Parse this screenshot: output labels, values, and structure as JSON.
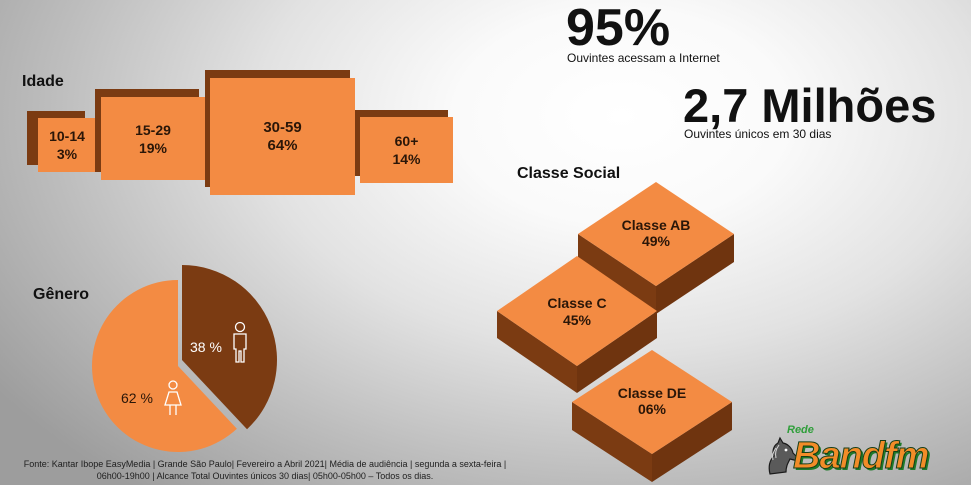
{
  "stats": {
    "internet": {
      "value": "95%",
      "label": "Ouvintes acessam a Internet"
    },
    "reach": {
      "value": "2,7 Milhões",
      "label": "Ouvintes únicos em 30 dias"
    }
  },
  "colors": {
    "orange": "#f38b43",
    "brown": "#7b3b12",
    "brown_shade": "#6f340f",
    "label_dark": "#2a1608",
    "logo_green": "#2f9e3a",
    "logo_orange": "#f28c28"
  },
  "chart_data": [
    {
      "type": "bar",
      "title": "Idade",
      "categories": [
        "10-14",
        "15-29",
        "30-59",
        "60+"
      ],
      "values": [
        3,
        19,
        64,
        14
      ],
      "value_labels": [
        "3%",
        "19%",
        "64%",
        "14%"
      ]
    },
    {
      "type": "pie",
      "title": "Gênero",
      "values": [
        38,
        62
      ],
      "value_labels": [
        "38 %",
        "62 %"
      ],
      "icons": [
        "male-icon",
        "female-icon"
      ],
      "colors": [
        "#7b3b12",
        "#f38b43"
      ]
    },
    {
      "type": "bar",
      "title": "Classe Social",
      "categories": [
        "Classe AB",
        "Classe C",
        "Classe DE"
      ],
      "values": [
        49,
        45,
        6
      ],
      "value_labels": [
        "49%",
        "45%",
        "06%"
      ]
    }
  ],
  "footnote": "Fonte: Kantar Ibope EasyMedia | Grande São Paulo|  Fevereiro a Abril 2021| Média de audiência | segunda a sexta-feira | 06h00-19h00 | Alcance Total Ouvintes únicos 30 dias| 05h00-05h00 – Todos os dias.",
  "logo": {
    "network": "Rede",
    "brand": "Bandfm",
    "mascot_icon": "mascot-icon"
  }
}
